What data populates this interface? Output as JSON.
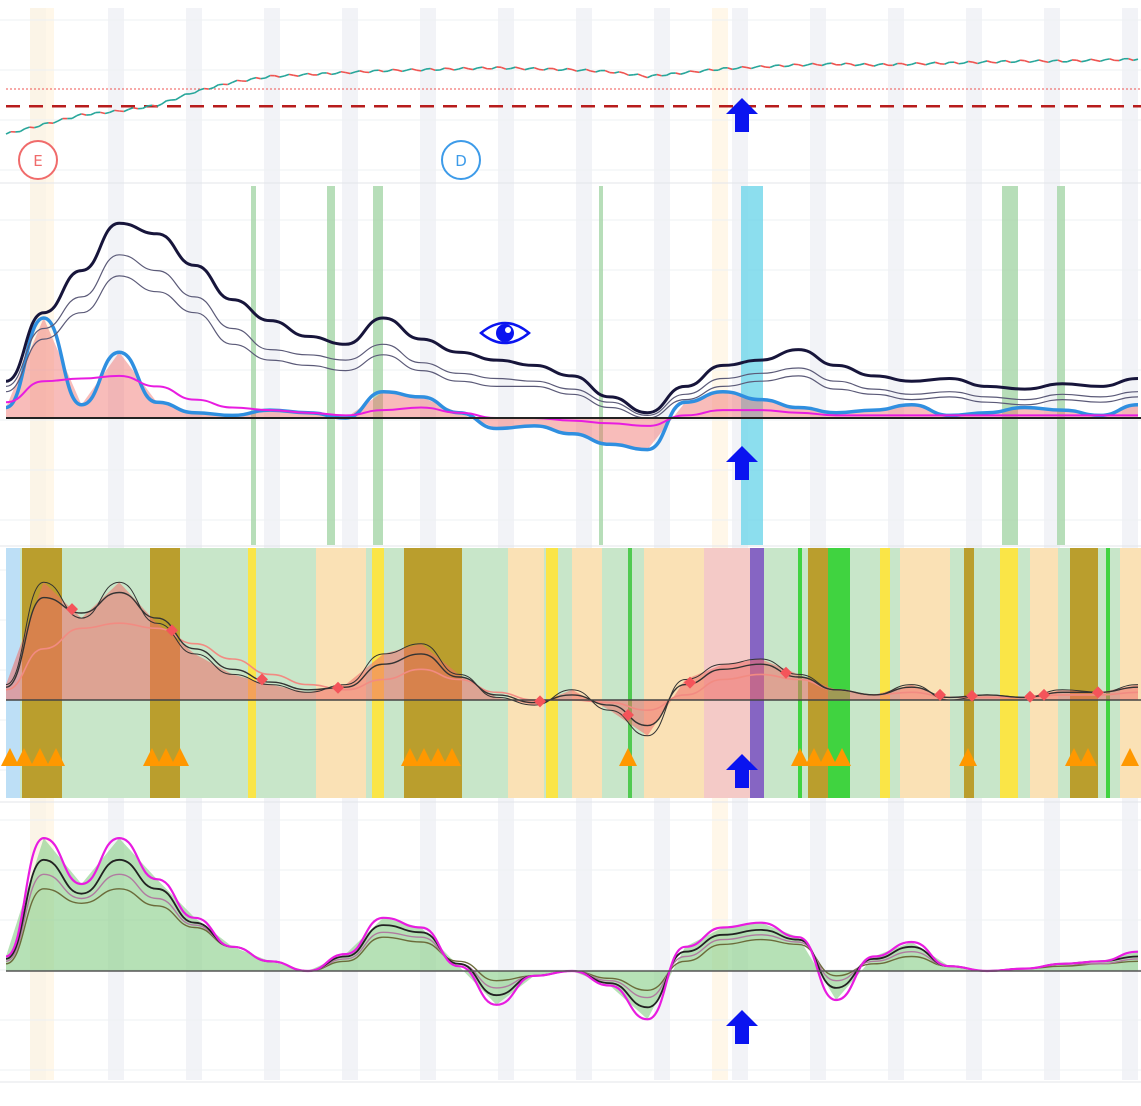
{
  "markers": {
    "event_e": {
      "label": "E",
      "color": "#f06b6b"
    },
    "event_d": {
      "label": "D",
      "color": "#3d9be9"
    }
  },
  "colors": {
    "bull": "#26a69a",
    "bear": "#ef5350",
    "support": "#b71c1c",
    "arrow": "#0a14f0",
    "navy": "#17153b",
    "blue": "#2f8fe0",
    "magenta": "#e81ce0",
    "green_fill": "#8fd18f",
    "red_fill": "#ef6b66",
    "olive": "#b8961c",
    "orange": "#ff9800",
    "yellow": "#ffe438",
    "purple": "#7e57c2",
    "cyan": "#6fd6ea"
  },
  "icons": [
    "up-arrow-icon",
    "eye-icon",
    "triangle-up-icon",
    "diamond-icon"
  ],
  "chart_data": [
    {
      "type": "line",
      "panel": "price",
      "series": [
        {
          "values": [
            0.02,
            0.12,
            0.22,
            0.26,
            0.32,
            0.46,
            0.56,
            0.62,
            0.64,
            0.66,
            0.68,
            0.69,
            0.7,
            0.71,
            0.7,
            0.69,
            0.67,
            0.62,
            0.66,
            0.7,
            0.72,
            0.74,
            0.75,
            0.74,
            0.75,
            0.76,
            0.77,
            0.78,
            0.78,
            0.79,
            0.8
          ]
        }
      ],
      "reference_levels": {
        "dotted": 0.49,
        "dashed": 0.31
      },
      "signals": [
        {
          "type": "up-arrow",
          "x_index": 20
        }
      ],
      "events": [
        {
          "label": "E",
          "x_index": 1
        },
        {
          "label": "D",
          "x_index": 12
        }
      ]
    },
    {
      "type": "line",
      "panel": "oscillator-1",
      "series": [
        {
          "values": [
            0.14,
            0.4,
            0.56,
            0.74,
            0.7,
            0.58,
            0.45,
            0.37,
            0.31,
            0.28,
            0.38,
            0.3,
            0.25,
            0.22,
            0.2,
            0.16,
            0.08,
            0.02,
            0.12,
            0.2,
            0.22,
            0.26,
            0.2,
            0.16,
            0.14,
            0.15,
            0.12,
            0.11,
            0.13,
            0.12,
            0.15
          ]
        },
        {
          "values": [
            0.12,
            0.34,
            0.46,
            0.62,
            0.56,
            0.46,
            0.34,
            0.26,
            0.24,
            0.22,
            0.28,
            0.21,
            0.17,
            0.15,
            0.14,
            0.11,
            0.06,
            0.01,
            0.09,
            0.15,
            0.17,
            0.19,
            0.14,
            0.11,
            0.09,
            0.1,
            0.08,
            0.07,
            0.09,
            0.08,
            0.1
          ]
        },
        {
          "values": [
            0.1,
            0.3,
            0.4,
            0.54,
            0.48,
            0.4,
            0.28,
            0.22,
            0.2,
            0.18,
            0.24,
            0.18,
            0.14,
            0.12,
            0.12,
            0.09,
            0.04,
            0.0,
            0.07,
            0.12,
            0.14,
            0.16,
            0.11,
            0.09,
            0.07,
            0.08,
            0.06,
            0.05,
            0.07,
            0.06,
            0.08
          ]
        },
        {
          "values": [
            0.04,
            0.38,
            0.05,
            0.25,
            0.06,
            0.02,
            0.01,
            0.03,
            0.02,
            0.0,
            0.1,
            0.08,
            0.02,
            -0.04,
            -0.03,
            -0.06,
            -0.1,
            -0.12,
            0.06,
            0.1,
            0.07,
            0.04,
            0.02,
            0.03,
            0.05,
            0.01,
            0.02,
            0.04,
            0.03,
            0.01,
            0.05
          ]
        },
        {
          "values": [
            0.06,
            0.14,
            0.15,
            0.16,
            0.12,
            0.07,
            0.04,
            0.03,
            0.02,
            0.01,
            0.03,
            0.04,
            0.02,
            0.0,
            0.0,
            -0.01,
            -0.02,
            -0.03,
            0.01,
            0.03,
            0.03,
            0.02,
            0.01,
            0.01,
            0.01,
            0.01,
            0.01,
            0.01,
            0.01,
            0.01,
            0.01
          ]
        }
      ],
      "signals": [
        {
          "type": "up-arrow",
          "x_index": 20
        }
      ]
    },
    {
      "type": "area",
      "panel": "oscillator-2",
      "series": [
        {
          "values": [
            0.06,
            0.46,
            0.32,
            0.46,
            0.3,
            0.18,
            0.1,
            0.06,
            0.03,
            0.06,
            0.18,
            0.22,
            0.1,
            0.01,
            -0.02,
            0.04,
            -0.04,
            -0.14,
            0.08,
            0.14,
            0.16,
            0.1,
            0.04,
            0.02,
            0.06,
            0.0,
            0.02,
            0.01,
            0.04,
            0.03,
            0.06
          ]
        },
        {
          "values": [
            0.05,
            0.4,
            0.34,
            0.42,
            0.32,
            0.2,
            0.12,
            0.07,
            0.04,
            0.05,
            0.14,
            0.18,
            0.09,
            0.02,
            -0.01,
            0.02,
            -0.02,
            -0.1,
            0.06,
            0.12,
            0.14,
            0.09,
            0.04,
            0.02,
            0.05,
            0.01,
            0.02,
            0.01,
            0.03,
            0.03,
            0.05
          ]
        },
        {
          "values": [
            0.04,
            0.2,
            0.28,
            0.3,
            0.28,
            0.22,
            0.16,
            0.1,
            0.06,
            0.04,
            0.08,
            0.12,
            0.08,
            0.03,
            0.0,
            0.0,
            -0.01,
            -0.04,
            0.02,
            0.08,
            0.1,
            0.08,
            0.04,
            0.02,
            0.03,
            0.01,
            0.01,
            0.01,
            0.02,
            0.02,
            0.03
          ]
        }
      ],
      "signals": [
        {
          "type": "up-arrow",
          "x_index": 20
        }
      ]
    },
    {
      "type": "area",
      "panel": "oscillator-3",
      "series": [
        {
          "values": [
            0.06,
            0.55,
            0.36,
            0.55,
            0.38,
            0.22,
            0.1,
            0.04,
            0.0,
            0.07,
            0.22,
            0.18,
            0.02,
            -0.14,
            -0.02,
            0.0,
            -0.06,
            -0.2,
            0.1,
            0.18,
            0.2,
            0.14,
            -0.12,
            0.06,
            0.12,
            0.02,
            0.0,
            0.01,
            0.03,
            0.04,
            0.08
          ]
        },
        {
          "values": [
            0.05,
            0.46,
            0.32,
            0.46,
            0.34,
            0.2,
            0.1,
            0.04,
            0.0,
            0.06,
            0.19,
            0.16,
            0.03,
            -0.1,
            -0.02,
            0.0,
            -0.05,
            -0.15,
            0.08,
            0.15,
            0.17,
            0.13,
            -0.07,
            0.05,
            0.1,
            0.02,
            0.0,
            0.01,
            0.03,
            0.04,
            0.06
          ]
        },
        {
          "values": [
            0.04,
            0.4,
            0.3,
            0.4,
            0.3,
            0.19,
            0.1,
            0.04,
            0.0,
            0.05,
            0.16,
            0.14,
            0.03,
            -0.07,
            -0.02,
            0.0,
            -0.04,
            -0.11,
            0.06,
            0.13,
            0.15,
            0.12,
            -0.04,
            0.04,
            0.08,
            0.02,
            0.0,
            0.01,
            0.03,
            0.03,
            0.05
          ]
        },
        {
          "values": [
            0.03,
            0.34,
            0.28,
            0.34,
            0.27,
            0.18,
            0.1,
            0.04,
            0.0,
            0.04,
            0.14,
            0.12,
            0.04,
            -0.04,
            -0.02,
            0.0,
            -0.03,
            -0.08,
            0.04,
            0.11,
            0.13,
            0.11,
            -0.02,
            0.03,
            0.06,
            0.02,
            0.0,
            0.01,
            0.02,
            0.03,
            0.04
          ]
        }
      ],
      "signals": [
        {
          "type": "up-arrow",
          "x_index": 20
        }
      ]
    }
  ]
}
